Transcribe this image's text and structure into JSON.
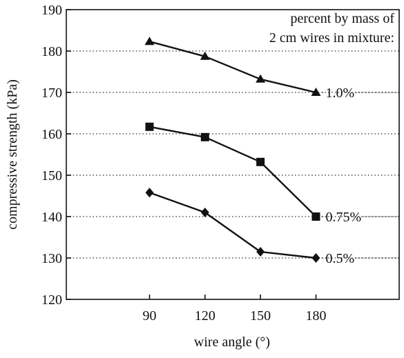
{
  "chart_data": {
    "type": "line",
    "title": "",
    "xlabel": "wire angle (°)",
    "ylabel": "compressive strength (kPa)",
    "x": [
      90,
      120,
      150,
      180
    ],
    "xticks": [
      "90",
      "120",
      "150",
      "180"
    ],
    "xlim": [
      45,
      225
    ],
    "ylim": [
      120,
      190
    ],
    "yticks": [
      "120",
      "130",
      "140",
      "150",
      "160",
      "170",
      "180",
      "190"
    ],
    "grid": "horizontal dotted",
    "legend_title_lines": [
      "percent by mass of",
      "2 cm wires in mixture:"
    ],
    "legend_placement": "top-right",
    "series": [
      {
        "name": "1.0%",
        "marker": "triangle",
        "values": [
          182.3,
          178.7,
          173.2,
          170.0
        ]
      },
      {
        "name": "0.75%",
        "marker": "square",
        "values": [
          161.7,
          159.2,
          153.2,
          140.0
        ]
      },
      {
        "name": "0.5%",
        "marker": "diamond",
        "values": [
          145.8,
          141.0,
          131.5,
          130.0
        ]
      }
    ],
    "colors": {
      "line": "#111111",
      "grid": "#555555",
      "background": "#ffffff"
    }
  }
}
